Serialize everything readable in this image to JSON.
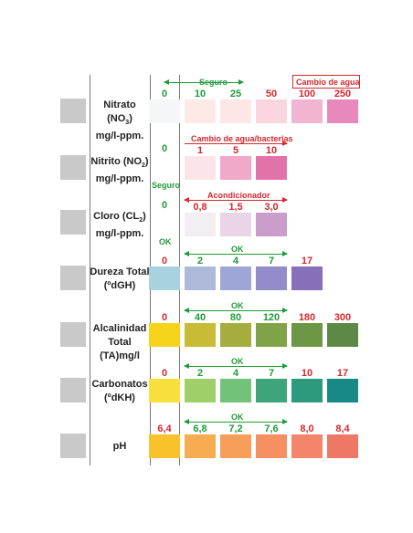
{
  "rows": {
    "nitrato": {
      "label_name": "Nitrato (NO",
      "label_sub": "3",
      "label_tail": ")",
      "label_unit": "mg/l-ppm.",
      "values": [
        "0",
        "10",
        "25",
        "50",
        "100",
        "250"
      ],
      "note_seguro": "Seguro",
      "note_cambio": "Cambio de agua",
      "colors": [
        "#f5f6f8",
        "#fdeae6",
        "#fce6e6",
        "#fbd6de",
        "#f2b5d1",
        "#e889bb"
      ]
    },
    "nitrito": {
      "label_name": "Nitrito (NO",
      "label_sub": "2",
      "label_tail": ")",
      "label_unit": "mg/l-ppm.",
      "values": [
        "0",
        "1",
        "5",
        "10"
      ],
      "note_cambio": "Cambio de agua/bacterias",
      "note_seguro": "Seguro",
      "colors": [
        "#fbe4ea",
        "#f0a9c9",
        "#e173aa"
      ]
    },
    "cloro": {
      "label_name": "Cloro (CL",
      "label_sub": "2",
      "label_tail": ")",
      "label_unit": "mg/l-ppm.",
      "values": [
        "0",
        "0,8",
        "1,5",
        "3,0"
      ],
      "note_acond": "Acondicionador",
      "note_ok": "OK",
      "colors": [
        "#f3eef4",
        "#ead5e6",
        "#c99cc9"
      ]
    },
    "dureza": {
      "label_name": "Dureza Total",
      "label_unit": "(ºdGH)",
      "values": [
        "0",
        "2",
        "4",
        "7",
        "17"
      ],
      "note_ok": "OK",
      "colors": [
        "#a9d2e0",
        "#adb9d8",
        "#9da6d6",
        "#938ccb",
        "#8670b9"
      ]
    },
    "alcalinidad": {
      "label_name": "Alcalinidad",
      "label_unit": "Total (TA)mg/l",
      "values": [
        "0",
        "40",
        "80",
        "120",
        "180",
        "300"
      ],
      "note_ok": "OK",
      "colors": [
        "#f7d41c",
        "#c8bb35",
        "#a5ad3f",
        "#80a347",
        "#6c9744",
        "#5c8a46"
      ]
    },
    "carbonatos": {
      "label_name": "Carbonatos",
      "label_unit": "(ºdKH)",
      "values": [
        "0",
        "2",
        "4",
        "7",
        "10",
        "17"
      ],
      "note_ok": "OK",
      "colors": [
        "#f8df3c",
        "#9fcf68",
        "#72c27a",
        "#3da579",
        "#2d9a7d",
        "#188a86"
      ]
    },
    "ph": {
      "label_name": "pH",
      "values": [
        "6,4",
        "6,8",
        "7,2",
        "7,6",
        "8,0",
        "8,4"
      ],
      "note_ok": "OK",
      "colors": [
        "#f9c12a",
        "#f8ac51",
        "#f79e5a",
        "#f59060",
        "#f3856a",
        "#ef7766"
      ]
    }
  }
}
